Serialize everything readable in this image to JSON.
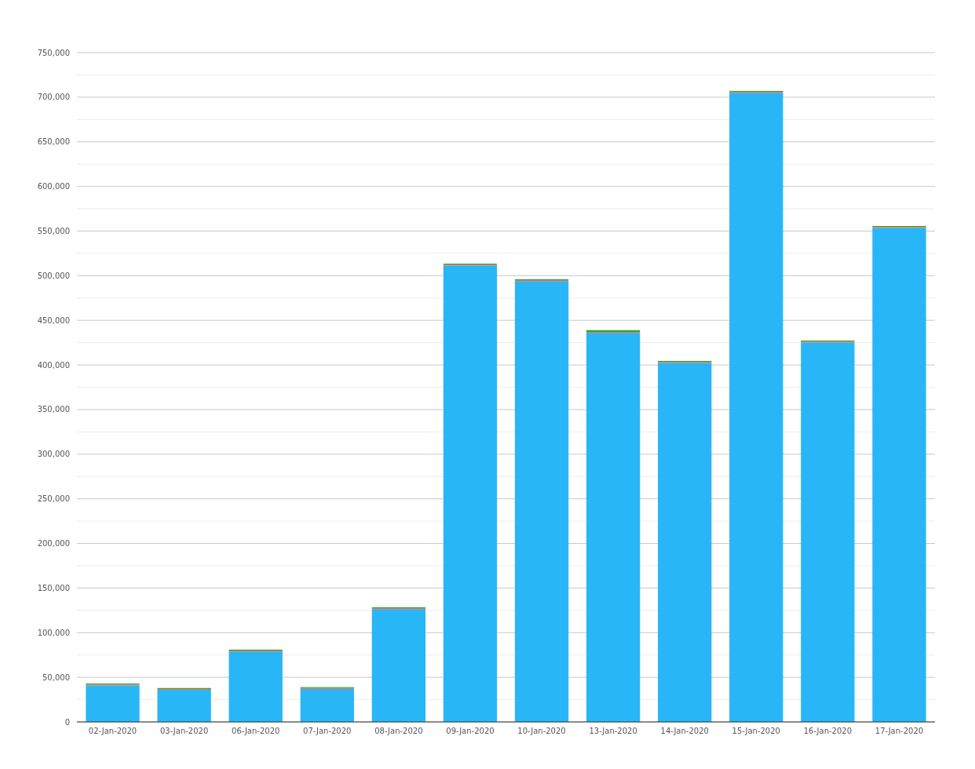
{
  "chart_data": {
    "type": "bar",
    "stacked": true,
    "categories": [
      "02-Jan-2020",
      "03-Jan-2020",
      "06-Jan-2020",
      "07-Jan-2020",
      "08-Jan-2020",
      "09-Jan-2020",
      "10-Jan-2020",
      "13-Jan-2020",
      "14-Jan-2020",
      "15-Jan-2020",
      "16-Jan-2020",
      "17-Jan-2020"
    ],
    "series": [
      {
        "color": "#29b6f6",
        "values": [
          41000,
          36000,
          79000,
          37000,
          126500,
          511500,
          494000,
          436000,
          402500,
          705000,
          425300,
          553700
        ]
      },
      {
        "color": "#f26b5f",
        "values": [
          1000,
          1000,
          1000,
          1000,
          1000,
          1000,
          1000,
          1000,
          1000,
          1000,
          1000,
          1000
        ]
      },
      {
        "color": "#2aaa2a",
        "values": [
          1000,
          1000,
          1000,
          1000,
          1000,
          1000,
          1000,
          2000,
          1000,
          1000,
          1000,
          1000
        ]
      }
    ],
    "ylim": [
      0,
      750000
    ],
    "yticks": [
      0,
      {
        "value": 25000,
        "label": null
      },
      {
        "value": 50000,
        "label": "50,000"
      },
      {
        "value": 75000,
        "label": null
      },
      {
        "value": 100000,
        "label": "100,000"
      },
      {
        "value": 125000,
        "label": null
      },
      {
        "value": 150000,
        "label": "150,000"
      },
      {
        "value": 175000,
        "label": null
      },
      {
        "value": 200000,
        "label": "200,000"
      },
      {
        "value": 225000,
        "label": null
      },
      {
        "value": 250000,
        "label": "250,000"
      },
      {
        "value": 275000,
        "label": null
      },
      {
        "value": 300000,
        "label": "300,000"
      },
      {
        "value": 325000,
        "label": null
      },
      {
        "value": 350000,
        "label": "350,000"
      },
      {
        "value": 375000,
        "label": null
      },
      {
        "value": 400000,
        "label": "400,000"
      },
      {
        "value": 425000,
        "label": null
      },
      {
        "value": 450000,
        "label": "450,000"
      },
      {
        "value": 475000,
        "label": null
      },
      {
        "value": 500000,
        "label": "500,000"
      },
      {
        "value": 525000,
        "label": null
      },
      {
        "value": 550000,
        "label": "550,000"
      },
      {
        "value": 575000,
        "label": null
      },
      {
        "value": 600000,
        "label": "600,000"
      },
      {
        "value": 625000,
        "label": null
      },
      {
        "value": 650000,
        "label": "650,000"
      },
      {
        "value": 675000,
        "label": null
      },
      {
        "value": 700000,
        "label": "700,000"
      },
      {
        "value": 725000,
        "label": null
      },
      {
        "value": 750000,
        "label": "750,000"
      }
    ],
    "grid": "y"
  }
}
